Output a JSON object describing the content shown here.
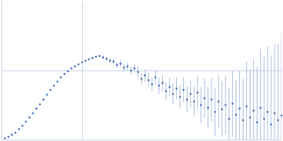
{
  "chart_data": {
    "type": "scatter",
    "x": [
      0.005,
      0.01,
      0.015,
      0.02,
      0.025,
      0.03,
      0.035,
      0.04,
      0.045,
      0.05,
      0.055,
      0.06,
      0.065,
      0.07,
      0.075,
      0.08,
      0.085,
      0.09,
      0.095,
      0.1,
      0.105,
      0.11,
      0.115,
      0.12,
      0.125,
      0.13,
      0.135,
      0.14,
      0.145,
      0.15,
      0.155,
      0.16,
      0.165,
      0.17,
      0.175,
      0.18,
      0.185,
      0.19,
      0.195,
      0.2,
      0.205,
      0.21,
      0.215,
      0.22,
      0.225,
      0.23,
      0.235,
      0.24,
      0.245,
      0.25,
      0.255,
      0.26,
      0.265,
      0.27,
      0.275,
      0.28,
      0.285,
      0.29,
      0.295,
      0.3,
      0.305,
      0.31,
      0.315,
      0.32,
      0.325,
      0.33,
      0.335,
      0.34,
      0.345,
      0.35,
      0.355,
      0.36,
      0.365,
      0.37,
      0.375,
      0.38,
      0.385,
      0.39,
      0.395,
      0.4
    ],
    "series": [
      {
        "color": "#3b66b5",
        "marker": "circle",
        "values": [
          0.02,
          0.04,
          0.07,
          0.1,
          0.15,
          0.2,
          0.26,
          0.32,
          0.38,
          0.45,
          0.51,
          0.58,
          0.65,
          0.72,
          0.78,
          0.84,
          0.9,
          0.95,
          0.99,
          1.03,
          1.06,
          1.09,
          1.12,
          1.14,
          1.16,
          1.18,
          1.2,
          1.21,
          1.19,
          1.17,
          1.14,
          1.13,
          1.08,
          1.1,
          1.04,
          1.06,
          1.0,
          1.03,
          0.98,
          0.88,
          0.93,
          0.86,
          0.8,
          0.9,
          0.78,
          0.82,
          0.7,
          0.76,
          0.66,
          0.74,
          0.62,
          0.72,
          0.58,
          0.66,
          0.55,
          0.68,
          0.5,
          0.6,
          0.46,
          0.58,
          0.4,
          0.55,
          0.44,
          0.5,
          0.3,
          0.52,
          0.36,
          0.45,
          0.28,
          0.48,
          0.32,
          0.42,
          0.25,
          0.46,
          0.3,
          0.4,
          0.22,
          0.38,
          0.28,
          0.35
        ],
        "errors": [
          0.01,
          0.01,
          0.01,
          0.01,
          0.01,
          0.01,
          0.01,
          0.01,
          0.01,
          0.01,
          0.01,
          0.01,
          0.01,
          0.01,
          0.01,
          0.01,
          0.01,
          0.01,
          0.01,
          0.01,
          0.01,
          0.01,
          0.01,
          0.01,
          0.01,
          0.01,
          0.01,
          0.01,
          0.02,
          0.03,
          0.03,
          0.04,
          0.04,
          0.05,
          0.05,
          0.06,
          0.06,
          0.07,
          0.08,
          0.08,
          0.09,
          0.1,
          0.1,
          0.11,
          0.12,
          0.12,
          0.13,
          0.14,
          0.15,
          0.16,
          0.17,
          0.18,
          0.19,
          0.2,
          0.22,
          0.24,
          0.26,
          0.28,
          0.3,
          0.32,
          0.35,
          0.38,
          0.4,
          0.42,
          0.45,
          0.48,
          0.5,
          0.55,
          0.6,
          0.65,
          0.7,
          0.75,
          0.8,
          0.85,
          0.9,
          0.95,
          1.0,
          1.0,
          1.1,
          1.2
        ]
      }
    ],
    "xlim": [
      0,
      0.4
    ],
    "xticks": [
      0.115
    ],
    "ylim": [
      0,
      2
    ],
    "yticks": [
      1
    ],
    "grid": true,
    "tick_labels": false
  }
}
